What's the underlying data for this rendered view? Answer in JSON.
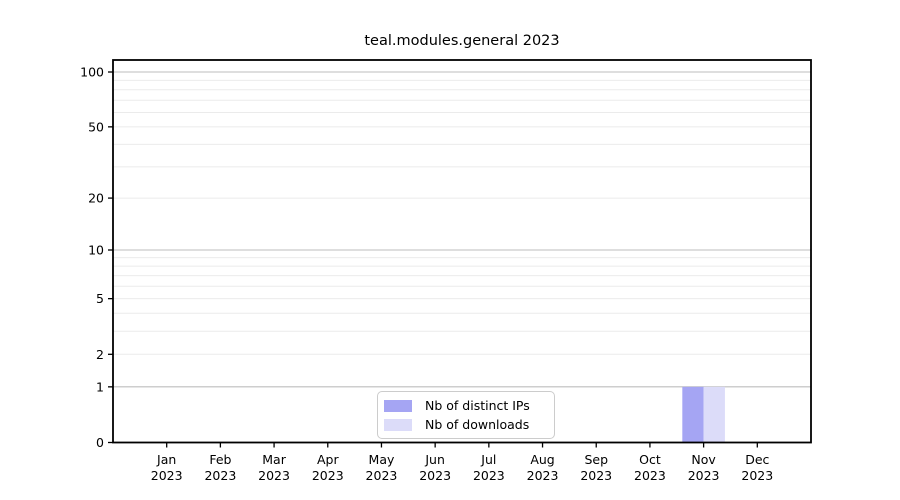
{
  "chart_data": {
    "type": "bar",
    "title": "teal.modules.general 2023",
    "xlabel": "",
    "ylabel": "",
    "categories": [
      "Jan 2023",
      "Feb 2023",
      "Mar 2023",
      "Apr 2023",
      "May 2023",
      "Jun 2023",
      "Jul 2023",
      "Aug 2023",
      "Sep 2023",
      "Oct 2023",
      "Nov 2023",
      "Dec 2023"
    ],
    "series": [
      {
        "name": "Nb of distinct IPs",
        "color": "#a5a5f3",
        "values": [
          0,
          0,
          0,
          0,
          0,
          0,
          0,
          0,
          0,
          0,
          1,
          0
        ]
      },
      {
        "name": "Nb of downloads",
        "color": "#dcdcf9",
        "values": [
          0,
          0,
          0,
          0,
          0,
          0,
          0,
          0,
          0,
          0,
          1,
          0
        ]
      }
    ],
    "yscale": "log1p",
    "ylim": [
      0,
      116
    ],
    "y_ticks": [
      0,
      1,
      2,
      5,
      10,
      20,
      50,
      100
    ],
    "y_major_gridlines": [
      1,
      10,
      100
    ],
    "y_minor_gridlines": [
      2,
      3,
      4,
      5,
      6,
      7,
      8,
      9,
      20,
      30,
      40,
      50,
      60,
      70,
      80,
      90
    ],
    "grid": true,
    "legend_position": "lower center"
  },
  "colors": {
    "background": "#ffffff",
    "spine": "#000000",
    "tick_label": "#000000",
    "major_gridline": "#bdbdbd",
    "minor_gridline": "#ebebeb",
    "legend_border": "#cccccc"
  }
}
